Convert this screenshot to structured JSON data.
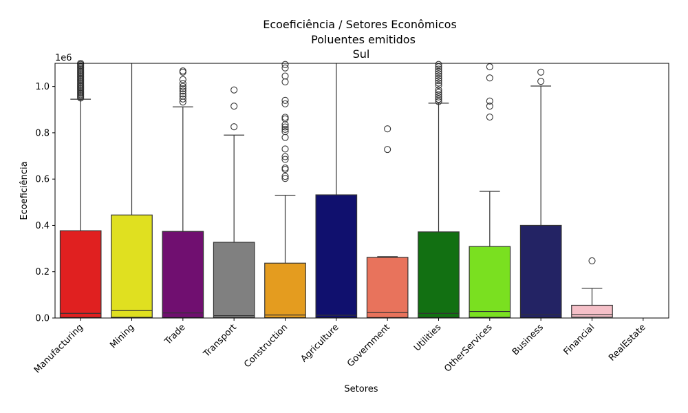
{
  "chart_data": {
    "type": "box",
    "title_lines": [
      "Ecoeficiência / Setores Econômicos",
      "Poluentes emitidos",
      "Sul"
    ],
    "xlabel": "Setores",
    "ylabel": "Ecoeficiência",
    "y_offset_label": "1e6",
    "y_scale": 1000000,
    "ylim": [
      0,
      1100000
    ],
    "y_ticks": [
      0,
      200000,
      400000,
      600000,
      800000,
      1000000
    ],
    "y_tick_labels": [
      "0.0",
      "0.2",
      "0.4",
      "0.6",
      "0.8",
      "1.0"
    ],
    "grid": false,
    "categories": [
      "Manufacturing",
      "Mining",
      "Trade",
      "Transport",
      "Construction",
      "Agriculture",
      "Government",
      "Utilities",
      "OtherServices",
      "Business",
      "Financial",
      "RealEstate"
    ],
    "boxes": [
      {
        "category": "Manufacturing",
        "color": "#e02020",
        "q1": 2000,
        "median": 20000,
        "q3": 377000,
        "whisker_low": 0,
        "whisker_high": 945000,
        "outliers": [
          950000,
          955000,
          960000,
          965000,
          970000,
          975000,
          980000,
          985000,
          990000,
          995000,
          1000000,
          1005000,
          1010000,
          1015000,
          1020000,
          1025000,
          1030000,
          1035000,
          1040000,
          1045000,
          1050000,
          1055000,
          1060000,
          1065000,
          1070000,
          1075000,
          1080000,
          1085000,
          1090000,
          1095000,
          1100000
        ]
      },
      {
        "category": "Mining",
        "color": "#e0e020",
        "q1": 3000,
        "median": 32000,
        "q3": 445000,
        "whisker_low": 0,
        "whisker_high": 1100000,
        "outliers": []
      },
      {
        "category": "Trade",
        "color": "#700f70",
        "q1": 2000,
        "median": 22000,
        "q3": 374000,
        "whisker_low": 0,
        "whisker_high": 912000,
        "outliers": [
          933000,
          946000,
          958000,
          968000,
          980000,
          990000,
          1000000,
          1013000,
          1030000,
          1062000,
          1067000
        ]
      },
      {
        "category": "Transport",
        "color": "#808080",
        "q1": 1000,
        "median": 10000,
        "q3": 327000,
        "whisker_low": 0,
        "whisker_high": 790000,
        "outliers": [
          826000,
          915000,
          985000
        ]
      },
      {
        "category": "Construction",
        "color": "#e49c1f",
        "q1": 1000,
        "median": 13000,
        "q3": 237000,
        "whisker_low": 0,
        "whisker_high": 530000,
        "outliers": [
          603000,
          612000,
          642000,
          648000,
          685000,
          697000,
          730000,
          780000,
          805000,
          815000,
          825000,
          835000,
          860000,
          867000,
          925000,
          940000,
          1020000,
          1045000,
          1080000,
          1095000
        ]
      },
      {
        "category": "Agriculture",
        "color": "#10106e",
        "q1": 1000,
        "median": 12000,
        "q3": 532000,
        "whisker_low": 0,
        "whisker_high": 1100000,
        "outliers": []
      },
      {
        "category": "Government",
        "color": "#e8735c",
        "q1": 2000,
        "median": 25000,
        "q3": 262000,
        "whisker_low": 0,
        "whisker_high": 265000,
        "outliers": [
          728000,
          817000
        ]
      },
      {
        "category": "Utilities",
        "color": "#127012",
        "q1": 2000,
        "median": 20000,
        "q3": 372000,
        "whisker_low": 0,
        "whisker_high": 928000,
        "outliers": [
          935000,
          945000,
          955000,
          965000,
          975000,
          985000,
          1005000,
          1015000,
          1025000,
          1035000,
          1045000,
          1055000,
          1065000,
          1075000,
          1085000,
          1095000
        ]
      },
      {
        "category": "OtherServices",
        "color": "#7ae020",
        "q1": 3000,
        "median": 28000,
        "q3": 309000,
        "whisker_low": 0,
        "whisker_high": 547000,
        "outliers": [
          868000,
          915000,
          937000,
          1037000,
          1085000
        ]
      },
      {
        "category": "Business",
        "color": "#232364",
        "q1": 1000,
        "median": 14000,
        "q3": 400000,
        "whisker_low": 0,
        "whisker_high": 1002000,
        "outliers": [
          1022000,
          1062000
        ]
      },
      {
        "category": "Financial",
        "color": "#f5c0c8",
        "q1": 4000,
        "median": 15000,
        "q3": 55000,
        "whisker_low": 0,
        "whisker_high": 128000,
        "outliers": [
          247000
        ]
      },
      {
        "category": "RealEstate",
        "color": "#ffffff",
        "q1": 0,
        "median": 0,
        "q3": 0,
        "whisker_low": 0,
        "whisker_high": 0,
        "outliers": [],
        "empty": true
      }
    ]
  }
}
